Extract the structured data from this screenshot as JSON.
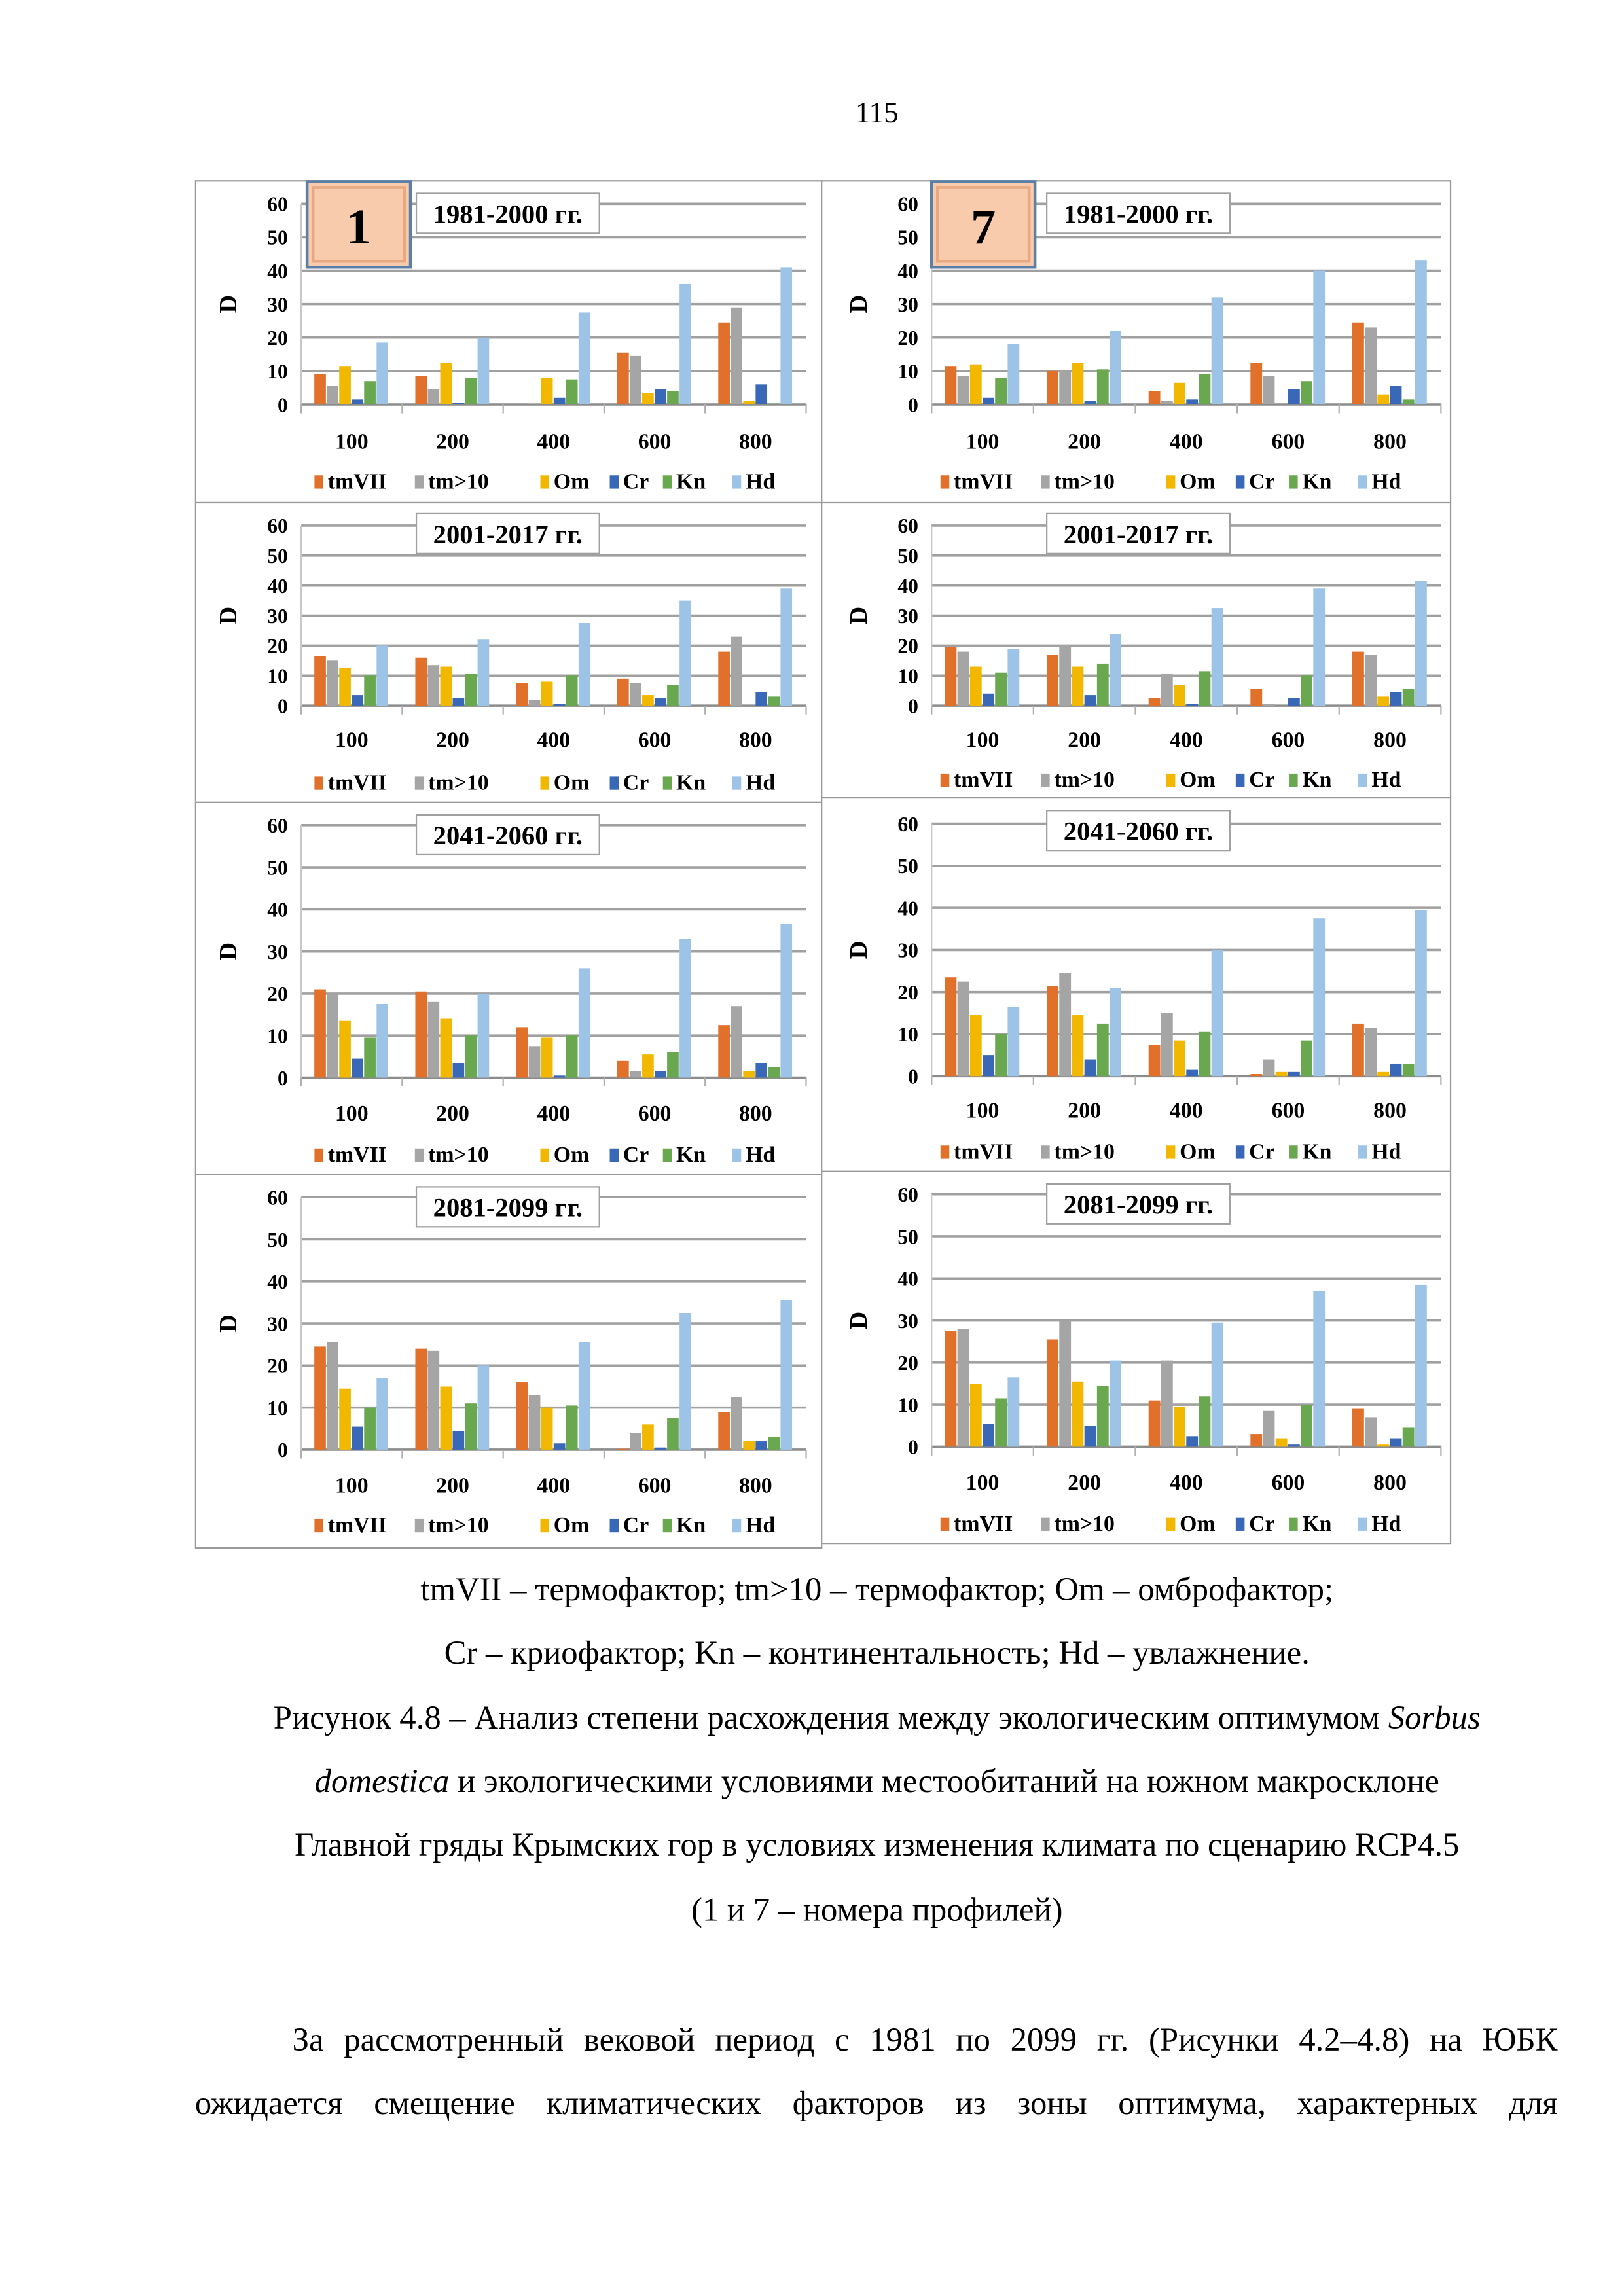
{
  "page_number": "115",
  "series_colors": [
    "#e0702a",
    "#a5a5a5",
    "#f2b800",
    "#3a68b8",
    "#6aa84f",
    "#9dc3e6"
  ],
  "chart_data": [
    {
      "type": "bar",
      "profile": "1",
      "title": "1981-2000 гг.",
      "ylabel": "D",
      "ylim": [
        0,
        60
      ],
      "yticks": [
        "0",
        "10",
        "20",
        "30",
        "40",
        "50",
        "60"
      ],
      "categories": [
        "100",
        "200",
        "400",
        "600",
        "800"
      ],
      "legend": "bottom",
      "series": [
        {
          "name": "tmVII",
          "values": [
            9,
            8.5,
            0,
            15.5,
            24.5
          ]
        },
        {
          "name": "tm>10",
          "values": [
            5.5,
            4.5,
            0.3,
            14.5,
            29
          ]
        },
        {
          "name": "Om",
          "values": [
            11.5,
            12.5,
            8,
            3.5,
            1
          ]
        },
        {
          "name": "Cr",
          "values": [
            1.5,
            0.5,
            2,
            4.5,
            6
          ]
        },
        {
          "name": "Kn",
          "values": [
            7,
            8,
            7.5,
            4,
            0.3
          ]
        },
        {
          "name": "Hd",
          "values": [
            18.5,
            20,
            27.5,
            36,
            41
          ]
        }
      ]
    },
    {
      "type": "bar",
      "profile": "7",
      "title": "1981-2000 гг.",
      "ylabel": "D",
      "ylim": [
        0,
        60
      ],
      "yticks": [
        "0",
        "10",
        "20",
        "30",
        "40",
        "50",
        "60"
      ],
      "categories": [
        "100",
        "200",
        "400",
        "600",
        "800"
      ],
      "legend": "bottom",
      "series": [
        {
          "name": "tmVII",
          "values": [
            11.5,
            10,
            4,
            12.5,
            24.5
          ]
        },
        {
          "name": "tm>10",
          "values": [
            8.5,
            10,
            1,
            8.5,
            23
          ]
        },
        {
          "name": "Om",
          "values": [
            12,
            12.5,
            6.5,
            0,
            3
          ]
        },
        {
          "name": "Cr",
          "values": [
            2,
            1,
            1.5,
            4.5,
            5.5
          ]
        },
        {
          "name": "Kn",
          "values": [
            8,
            10.5,
            9,
            7,
            1.5
          ]
        },
        {
          "name": "Hd",
          "values": [
            18,
            22,
            32,
            40,
            43
          ]
        }
      ]
    },
    {
      "type": "bar",
      "title": "2001-2017 гг.",
      "ylabel": "D",
      "ylim": [
        0,
        60
      ],
      "yticks": [
        "0",
        "10",
        "20",
        "30",
        "40",
        "50",
        "60"
      ],
      "categories": [
        "100",
        "200",
        "400",
        "600",
        "800"
      ],
      "legend": "bottom",
      "series": [
        {
          "name": "tmVII",
          "values": [
            16.5,
            16,
            7.5,
            9,
            18
          ]
        },
        {
          "name": "tm>10",
          "values": [
            15,
            13.5,
            2,
            7.5,
            23
          ]
        },
        {
          "name": "Om",
          "values": [
            12.5,
            13,
            8,
            3.5,
            0
          ]
        },
        {
          "name": "Cr",
          "values": [
            3.5,
            2.5,
            0.5,
            2.5,
            4.5
          ]
        },
        {
          "name": "Kn",
          "values": [
            10,
            10.5,
            10,
            7,
            3
          ]
        },
        {
          "name": "Hd",
          "values": [
            20,
            22,
            27.5,
            35,
            39
          ]
        }
      ]
    },
    {
      "type": "bar",
      "title": "2001-2017 гг.",
      "ylabel": "D",
      "ylim": [
        0,
        60
      ],
      "yticks": [
        "0",
        "10",
        "20",
        "30",
        "40",
        "50",
        "60"
      ],
      "categories": [
        "100",
        "200",
        "400",
        "600",
        "800"
      ],
      "legend": "bottom",
      "series": [
        {
          "name": "tmVII",
          "values": [
            19.5,
            17,
            2.5,
            5.5,
            18
          ]
        },
        {
          "name": "tm>10",
          "values": [
            18,
            20,
            10.5,
            0.5,
            17
          ]
        },
        {
          "name": "Om",
          "values": [
            13,
            13,
            7,
            0,
            3
          ]
        },
        {
          "name": "Cr",
          "values": [
            4,
            3.5,
            0.5,
            2.5,
            4.5
          ]
        },
        {
          "name": "Kn",
          "values": [
            11,
            14,
            11.5,
            10,
            5.5
          ]
        },
        {
          "name": "Hd",
          "values": [
            19,
            24,
            32.5,
            39,
            41.5
          ]
        }
      ]
    },
    {
      "type": "bar",
      "title": "2041-2060 гг.",
      "ylabel": "D",
      "ylim": [
        0,
        60
      ],
      "yticks": [
        "0",
        "10",
        "20",
        "30",
        "40",
        "50",
        "60"
      ],
      "categories": [
        "100",
        "200",
        "400",
        "600",
        "800"
      ],
      "legend": "bottom",
      "series": [
        {
          "name": "tmVII",
          "values": [
            21,
            20.5,
            12,
            4,
            12.5
          ]
        },
        {
          "name": "tm>10",
          "values": [
            20,
            18,
            7.5,
            1.5,
            17
          ]
        },
        {
          "name": "Om",
          "values": [
            13.5,
            14,
            9.5,
            5.5,
            1.5
          ]
        },
        {
          "name": "Cr",
          "values": [
            4.5,
            3.5,
            0.5,
            1.5,
            3.5
          ]
        },
        {
          "name": "Kn",
          "values": [
            9.5,
            10,
            10,
            6,
            2.5
          ]
        },
        {
          "name": "Hd",
          "values": [
            17.5,
            20,
            26,
            33,
            36.5
          ]
        }
      ]
    },
    {
      "type": "bar",
      "title": "2041-2060 гг.",
      "ylabel": "D",
      "ylim": [
        0,
        60
      ],
      "yticks": [
        "0",
        "10",
        "20",
        "30",
        "40",
        "50",
        "60"
      ],
      "categories": [
        "100",
        "200",
        "400",
        "600",
        "800"
      ],
      "legend": "bottom",
      "series": [
        {
          "name": "tmVII",
          "values": [
            23.5,
            21.5,
            7.5,
            0.5,
            12.5
          ]
        },
        {
          "name": "tm>10",
          "values": [
            22.5,
            24.5,
            15,
            4,
            11.5
          ]
        },
        {
          "name": "Om",
          "values": [
            14.5,
            14.5,
            8.5,
            1,
            1
          ]
        },
        {
          "name": "Cr",
          "values": [
            5,
            4,
            1.5,
            1,
            3
          ]
        },
        {
          "name": "Kn",
          "values": [
            10,
            12.5,
            10.5,
            8.5,
            3
          ]
        },
        {
          "name": "Hd",
          "values": [
            16.5,
            21,
            30,
            37.5,
            39.5
          ]
        }
      ]
    },
    {
      "type": "bar",
      "title": "2081-2099 гг.",
      "ylabel": "D",
      "ylim": [
        0,
        60
      ],
      "yticks": [
        "0",
        "10",
        "20",
        "30",
        "40",
        "50",
        "60"
      ],
      "categories": [
        "100",
        "200",
        "400",
        "600",
        "800"
      ],
      "legend": "bottom",
      "series": [
        {
          "name": "tmVII",
          "values": [
            24.5,
            24,
            16,
            0.2,
            9
          ]
        },
        {
          "name": "tm>10",
          "values": [
            25.5,
            23.5,
            13,
            4,
            12.5
          ]
        },
        {
          "name": "Om",
          "values": [
            14.5,
            15,
            10,
            6,
            2
          ]
        },
        {
          "name": "Cr",
          "values": [
            5.5,
            4.5,
            1.5,
            0.5,
            2
          ]
        },
        {
          "name": "Kn",
          "values": [
            10,
            11,
            10.5,
            7.5,
            3
          ]
        },
        {
          "name": "Hd",
          "values": [
            17,
            20,
            25.5,
            32.5,
            35.5
          ]
        }
      ]
    },
    {
      "type": "bar",
      "title": "2081-2099 гг.",
      "ylabel": "D",
      "ylim": [
        0,
        60
      ],
      "yticks": [
        "0",
        "10",
        "20",
        "30",
        "40",
        "50",
        "60"
      ],
      "categories": [
        "100",
        "200",
        "400",
        "600",
        "800"
      ],
      "legend": "bottom",
      "series": [
        {
          "name": "tmVII",
          "values": [
            27.5,
            25.5,
            11,
            3,
            9
          ]
        },
        {
          "name": "tm>10",
          "values": [
            28,
            30,
            20.5,
            8.5,
            7
          ]
        },
        {
          "name": "Om",
          "values": [
            15,
            15.5,
            9.5,
            2,
            0.5
          ]
        },
        {
          "name": "Cr",
          "values": [
            5.5,
            5,
            2.5,
            0.5,
            2
          ]
        },
        {
          "name": "Kn",
          "values": [
            11.5,
            14.5,
            12,
            10,
            4.5
          ]
        },
        {
          "name": "Hd",
          "values": [
            16.5,
            20.5,
            29.5,
            37,
            38.5
          ]
        }
      ]
    }
  ],
  "legend_note": {
    "line1": "tmVII – термофактор; tm>10 – термофактор; Om – омброфактор;",
    "line2": "Cr – криофактор; Kn – континентальность; Hd – увлажнение."
  },
  "caption": {
    "l1_text": "Рисунок 4.8 – Анализ степени расхождения между экологическим оптимумом ",
    "l1_italic": "Sorbus",
    "l2_italic": "domestica",
    "l2_text": " и экологическими условиями местообитаний на южном макросклоне",
    "l3": "Главной гряды Крымских гор в условиях изменения климата по сценарию RCP4.5",
    "l4": "(1 и 7 – номера профилей)"
  },
  "paragraph": {
    "line1": "За рассмотренный вековой период с 1981 по 2099 гг. (Рисунки 4.2–4.8) на ЮБК",
    "line2": "ожидается смещение климатических факторов из зоны оптимума, характерных для"
  }
}
